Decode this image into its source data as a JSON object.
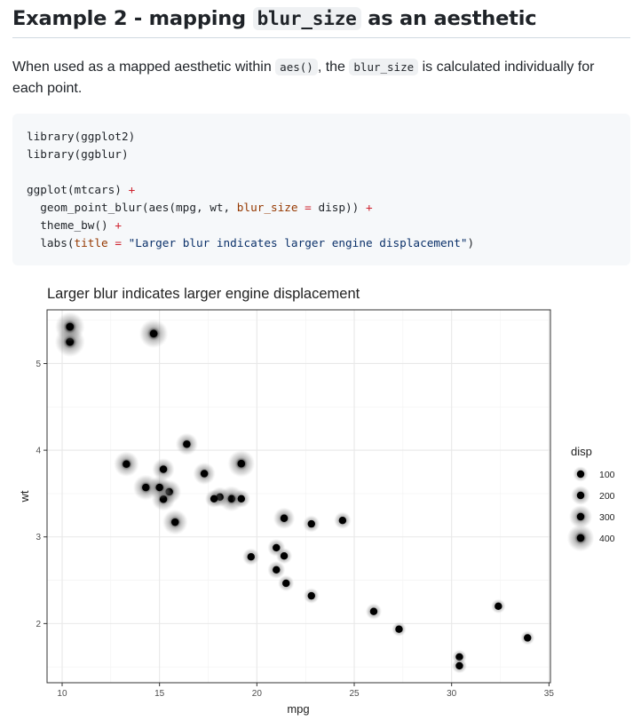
{
  "heading": {
    "prefix": "Example 2 - mapping ",
    "code": "blur_size",
    "suffix": " as an aesthetic"
  },
  "paragraph": {
    "part1": "When used as a mapped aesthetic within ",
    "code1": "aes()",
    "part2": ", the ",
    "code2": "blur_size",
    "part3": " is calculated individually for each point."
  },
  "code": {
    "line1": "library(ggplot2)",
    "line2": "library(ggblur)",
    "line4a": "ggplot(mtcars) ",
    "plus": "+",
    "line5a": "  geom_point_blur(aes(mpg, wt, ",
    "line5arg": "blur_size",
    "line5eq": " = ",
    "line5b": "disp)) ",
    "line6a": "  theme_bw() ",
    "line7a": "  labs(",
    "line7arg": "title",
    "line7eq": " = ",
    "line7str": "\"Larger blur indicates larger engine displacement\"",
    "line7b": ")"
  },
  "chart_data": {
    "type": "scatter",
    "title": "Larger blur indicates larger engine displacement",
    "xlabel": "mpg",
    "ylabel": "wt",
    "xlim": [
      10.4,
      33.9
    ],
    "ylim": [
      1.513,
      5.424
    ],
    "x_ticks": [
      10,
      15,
      20,
      25,
      30,
      35
    ],
    "y_ticks": [
      2,
      3,
      4,
      5
    ],
    "grid": true,
    "legend": {
      "title": "disp",
      "position": "right",
      "entries": [
        {
          "label": "100",
          "value": 100
        },
        {
          "label": "200",
          "value": 200
        },
        {
          "label": "300",
          "value": 300
        },
        {
          "label": "400",
          "value": 400
        }
      ]
    },
    "points": [
      {
        "x": 21.0,
        "y": 2.62,
        "disp": 160
      },
      {
        "x": 21.0,
        "y": 2.875,
        "disp": 160
      },
      {
        "x": 22.8,
        "y": 2.32,
        "disp": 108
      },
      {
        "x": 21.4,
        "y": 3.215,
        "disp": 258
      },
      {
        "x": 18.7,
        "y": 3.44,
        "disp": 360
      },
      {
        "x": 18.1,
        "y": 3.46,
        "disp": 225
      },
      {
        "x": 14.3,
        "y": 3.57,
        "disp": 360
      },
      {
        "x": 24.4,
        "y": 3.19,
        "disp": 146.7
      },
      {
        "x": 22.8,
        "y": 3.15,
        "disp": 140.8
      },
      {
        "x": 19.2,
        "y": 3.44,
        "disp": 167.6
      },
      {
        "x": 17.8,
        "y": 3.44,
        "disp": 167.6
      },
      {
        "x": 16.4,
        "y": 4.07,
        "disp": 275.8
      },
      {
        "x": 17.3,
        "y": 3.73,
        "disp": 275.8
      },
      {
        "x": 15.2,
        "y": 3.78,
        "disp": 275.8
      },
      {
        "x": 10.4,
        "y": 5.25,
        "disp": 472
      },
      {
        "x": 10.4,
        "y": 5.424,
        "disp": 460
      },
      {
        "x": 14.7,
        "y": 5.345,
        "disp": 440
      },
      {
        "x": 32.4,
        "y": 2.2,
        "disp": 78.7
      },
      {
        "x": 30.4,
        "y": 1.615,
        "disp": 75.7
      },
      {
        "x": 33.9,
        "y": 1.835,
        "disp": 71.1
      },
      {
        "x": 21.5,
        "y": 2.465,
        "disp": 120.1
      },
      {
        "x": 15.5,
        "y": 3.52,
        "disp": 318
      },
      {
        "x": 15.2,
        "y": 3.435,
        "disp": 304
      },
      {
        "x": 13.3,
        "y": 3.84,
        "disp": 350
      },
      {
        "x": 19.2,
        "y": 3.845,
        "disp": 400
      },
      {
        "x": 27.3,
        "y": 1.935,
        "disp": 79
      },
      {
        "x": 26.0,
        "y": 2.14,
        "disp": 120.3
      },
      {
        "x": 30.4,
        "y": 1.513,
        "disp": 95.1
      },
      {
        "x": 15.8,
        "y": 3.17,
        "disp": 351
      },
      {
        "x": 19.7,
        "y": 2.77,
        "disp": 145
      },
      {
        "x": 15.0,
        "y": 3.57,
        "disp": 301
      },
      {
        "x": 21.4,
        "y": 2.78,
        "disp": 121
      }
    ]
  }
}
